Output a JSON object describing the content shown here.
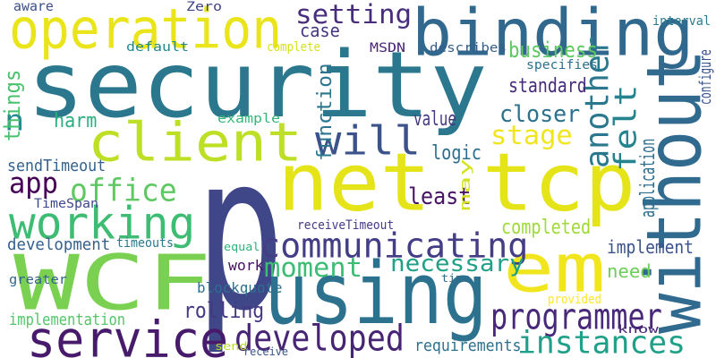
{
  "words": [
    {
      "text": "p",
      "color": "#3f4788",
      "rotated": false
    },
    {
      "text": "security",
      "color": "#2b788e",
      "rotated": false
    },
    {
      "text": "net tcp",
      "color": "#e5e419",
      "rotated": false
    },
    {
      "text": "using",
      "color": "#2c728e",
      "rotated": false
    },
    {
      "text": "WCF",
      "color": "#7ad151",
      "rotated": false
    },
    {
      "text": "em",
      "color": "#f1e51d",
      "rotated": false
    },
    {
      "text": "without",
      "color": "#306a8e",
      "rotated": true
    },
    {
      "text": "binding",
      "color": "#31688e",
      "rotated": false
    },
    {
      "text": "operation",
      "color": "#eae51a",
      "rotated": false
    },
    {
      "text": "client",
      "color": "#bddf26",
      "rotated": false
    },
    {
      "text": "service",
      "color": "#481a6c",
      "rotated": false
    },
    {
      "text": "working",
      "color": "#3fbc73",
      "rotated": false
    },
    {
      "text": "will",
      "color": "#3b528b",
      "rotated": false
    },
    {
      "text": "another",
      "color": "#2a788e",
      "rotated": true
    },
    {
      "text": "felt",
      "color": "#25848e",
      "rotated": true
    },
    {
      "text": "communicating",
      "color": "#433e85",
      "rotated": false
    },
    {
      "text": "programmer",
      "color": "#482878",
      "rotated": false
    },
    {
      "text": "developed",
      "color": "#482475",
      "rotated": false
    },
    {
      "text": "instances",
      "color": "#1fa088",
      "rotated": false
    },
    {
      "text": "setting",
      "color": "#472d7b",
      "rotated": false
    },
    {
      "text": "stage",
      "color": "#f1e51d",
      "rotated": false
    },
    {
      "text": "office",
      "color": "#5ec962",
      "rotated": false
    },
    {
      "text": "app",
      "color": "#440154",
      "rotated": false
    },
    {
      "text": "moment",
      "color": "#3dbc74",
      "rotated": false
    },
    {
      "text": "closer",
      "color": "#2c718e",
      "rotated": false
    },
    {
      "text": "necessary",
      "color": "#1fa187",
      "rotated": false
    },
    {
      "text": "least",
      "color": "#471365",
      "rotated": false
    },
    {
      "text": "rolling",
      "color": "#453781",
      "rotated": false
    },
    {
      "text": "n",
      "color": "#238a8d",
      "rotated": false
    },
    {
      "text": "things",
      "color": "#4ac16d",
      "rotated": true
    },
    {
      "text": "harm",
      "color": "#29af7f",
      "rotated": false
    },
    {
      "text": "value",
      "color": "#443983",
      "rotated": false
    },
    {
      "text": "logic",
      "color": "#2d708e",
      "rotated": false
    },
    {
      "text": "business",
      "color": "#5ec962",
      "rotated": false
    },
    {
      "text": "standard",
      "color": "#472c7a",
      "rotated": false
    },
    {
      "text": "case",
      "color": "#463480",
      "rotated": false
    },
    {
      "text": "function",
      "color": "#2a768e",
      "rotated": true
    },
    {
      "text": "application",
      "color": "#2e6f8e",
      "rotated": true
    },
    {
      "text": "completed",
      "color": "#9fda3a",
      "rotated": false
    },
    {
      "text": "implement",
      "color": "#3b528b",
      "rotated": false
    },
    {
      "text": "need",
      "color": "#6ccd5a",
      "rotated": false
    },
    {
      "text": "development",
      "color": "#355f8d",
      "rotated": false
    },
    {
      "text": "implementation",
      "color": "#54c568",
      "rotated": false
    },
    {
      "text": "requirements",
      "color": "#2d718e",
      "rotated": false
    },
    {
      "text": "blockquote",
      "color": "#2e6f8e",
      "rotated": false
    },
    {
      "text": "work",
      "color": "#471164",
      "rotated": false
    },
    {
      "text": "sendTimeout",
      "color": "#33638d",
      "rotated": false
    },
    {
      "text": "aware",
      "color": "#3d4e8a",
      "rotated": false
    },
    {
      "text": "may",
      "color": "#d2e21b",
      "rotated": true
    },
    {
      "text": "Zero",
      "color": "#414487",
      "rotated": false
    },
    {
      "text": "MSDN",
      "color": "#482576",
      "rotated": false
    },
    {
      "text": "describes",
      "color": "#355e8d",
      "rotated": false
    },
    {
      "text": "specifies",
      "color": "#2c728e",
      "rotated": false
    },
    {
      "text": "interval",
      "color": "#297b8e",
      "rotated": false
    },
    {
      "text": "configure",
      "color": "#3b528b",
      "rotated": true
    },
    {
      "text": "default",
      "color": "#23898e",
      "rotated": false
    },
    {
      "text": "complete",
      "color": "#d5e21a",
      "rotated": false
    },
    {
      "text": "example",
      "color": "#35b779",
      "rotated": false
    },
    {
      "text": "TimeSpan",
      "color": "#3e4989",
      "rotated": false
    },
    {
      "text": "receiveTimeout",
      "color": "#433d84",
      "rotated": false
    },
    {
      "text": "timeouts",
      "color": "#2a788e",
      "rotated": false
    },
    {
      "text": "equal",
      "color": "#2db27d",
      "rotated": false
    },
    {
      "text": "greater",
      "color": "#33638d",
      "rotated": false
    },
    {
      "text": "time",
      "color": "#2f6c8e",
      "rotated": false
    },
    {
      "text": "provided",
      "color": "#fde725",
      "rotated": false
    },
    {
      "text": "know",
      "color": "#482777",
      "rotated": false
    },
    {
      "text": "send",
      "color": "#bade28",
      "rotated": false
    },
    {
      "text": "receive",
      "color": "#3a538b",
      "rotated": false
    }
  ]
}
